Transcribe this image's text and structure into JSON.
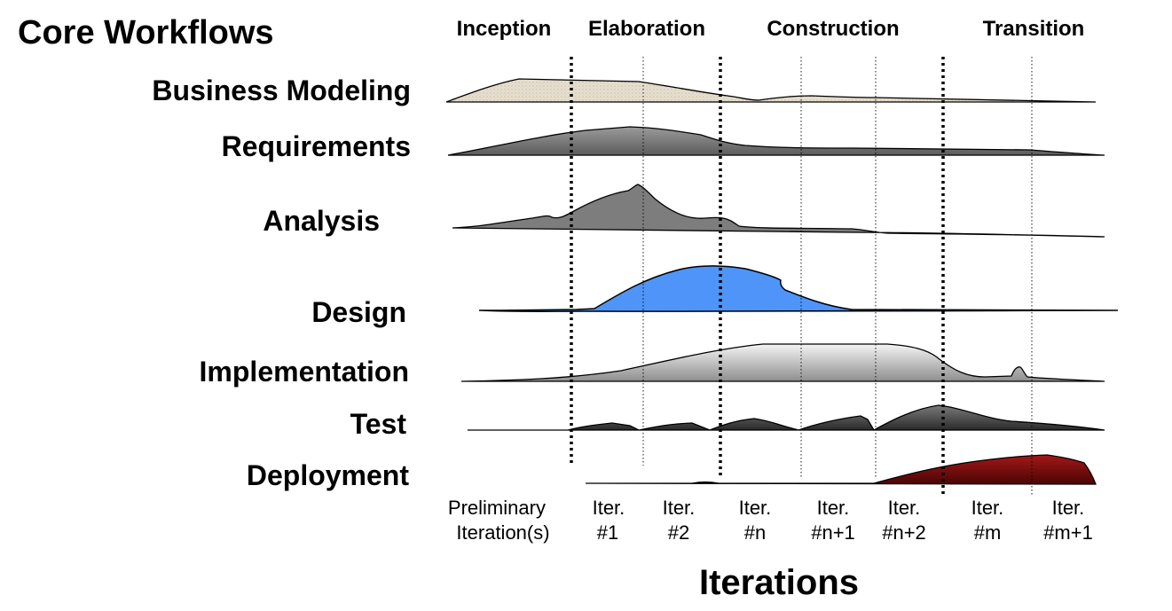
{
  "title": "Core Workflows",
  "phases": [
    "Inception",
    "Elaboration",
    "Construction",
    "Transition"
  ],
  "workflows": [
    {
      "name": "Business Modeling",
      "curve_shape": "early-low-plateau"
    },
    {
      "name": "Requirements",
      "curve_shape": "early-peak"
    },
    {
      "name": "Analysis",
      "curve_shape": "sharp-early-peak"
    },
    {
      "name": "Design",
      "curve_shape": "mid-bell"
    },
    {
      "name": "Implementation",
      "curve_shape": "construction-plateau"
    },
    {
      "name": "Test",
      "curve_shape": "per-iteration-bumps"
    },
    {
      "name": "Deployment",
      "curve_shape": "transition-ramp"
    }
  ],
  "iterations": [
    {
      "line1": "Preliminary",
      "line2": "Iteration(s)"
    },
    {
      "line1": "Iter.",
      "line2": "#1"
    },
    {
      "line1": "Iter.",
      "line2": "#2"
    },
    {
      "line1": "Iter.",
      "line2": "#n"
    },
    {
      "line1": "Iter.",
      "line2": "#n+1"
    },
    {
      "line1": "Iter.",
      "line2": "#n+2"
    },
    {
      "line1": "Iter.",
      "line2": "#m"
    },
    {
      "line1": "Iter.",
      "line2": "#m+1"
    }
  ],
  "axis_label": "Iterations",
  "colors": {
    "business_fill": "#e3dccb",
    "requirements_fill": "#808080",
    "analysis_fill": "#7d7d7d",
    "design_fill": "#4f94f8",
    "implementation_fill": "#d4d4d4",
    "test_fill": "#4a4a4a",
    "deployment_fill": "#8b0f0f"
  }
}
